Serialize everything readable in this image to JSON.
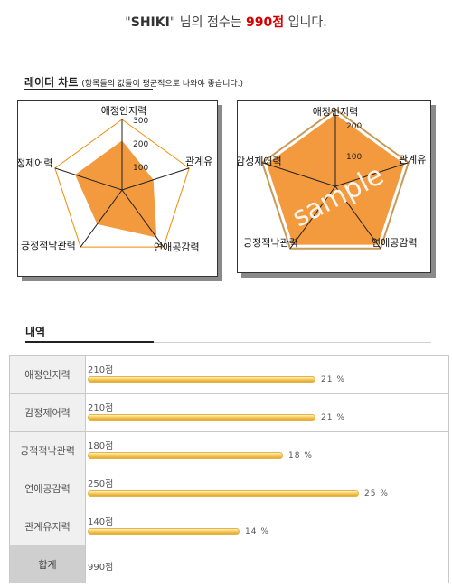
{
  "header": {
    "quote_open": "\"",
    "name": "SHIKI",
    "quote_close": "\"",
    "mid": " 님의 점수는 ",
    "score": "990점",
    "tail": " 입니다."
  },
  "radar_section": {
    "title": "레이더 차트",
    "note": "(항목들의 값들이 평균적으로 나와야 좋습니다.)"
  },
  "detail_section": {
    "title": "내역"
  },
  "colors": {
    "fill": "#f39a3e",
    "outline_orange": "#f08c00",
    "score_red": "#d40000",
    "bar": "#f3c24e"
  },
  "chart_data": [
    {
      "type": "radar",
      "axes": [
        "애정인지력",
        "관계유",
        "연애공감력",
        "긍정적낙관력",
        "정제어력"
      ],
      "values": [
        210,
        140,
        250,
        180,
        210
      ],
      "ticks": [
        "100",
        "200",
        "300"
      ],
      "r_max": 300
    },
    {
      "type": "radar",
      "axes": [
        "애정인지력",
        "관계유",
        "연애공감력",
        "긍정적낙관력",
        "감성제어력"
      ],
      "values": [
        235,
        235,
        235,
        235,
        235
      ],
      "ticks": [
        "100",
        "200"
      ],
      "r_max": 250,
      "watermark": "sample"
    },
    {
      "type": "bar",
      "categories": [
        "애정인지력",
        "감정제어력",
        "긍적적낙관력",
        "연애공감력",
        "관계유지력"
      ],
      "values": [
        210,
        210,
        180,
        250,
        140
      ],
      "value_labels": [
        "210점",
        "210점",
        "180점",
        "250점",
        "140점"
      ],
      "percents": [
        "21 %",
        "21 %",
        "18 %",
        "25 %",
        "14 %"
      ],
      "total_label": "합계",
      "total_value": "990점",
      "max": 250
    }
  ]
}
